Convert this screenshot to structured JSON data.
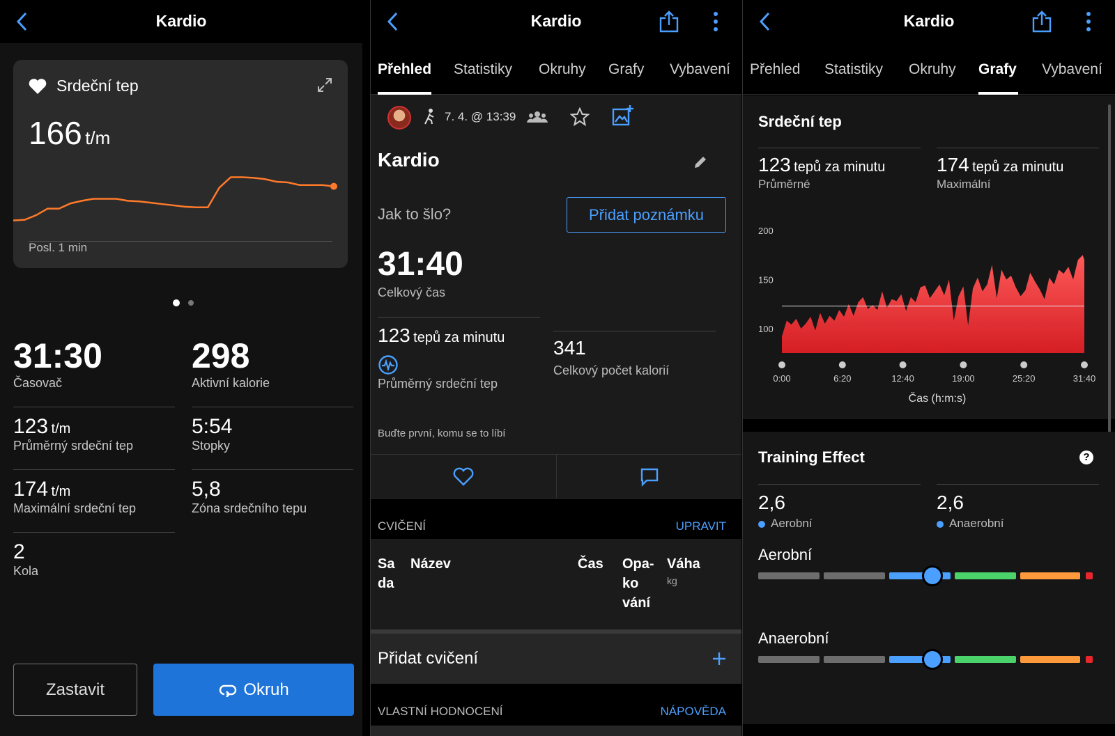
{
  "panel1": {
    "title": "Kardio",
    "hr_card": {
      "title": "Srdeční tep",
      "value": "166",
      "unit": "t/m",
      "footer": "Posl. 1 min"
    },
    "metrics": [
      {
        "value": "31:30",
        "unit": "",
        "label": "Časovač"
      },
      {
        "value": "298",
        "unit": "",
        "label": "Aktivní kalorie"
      },
      {
        "value": "123",
        "unit": "t/m",
        "label": "Průměrný srdeční tep"
      },
      {
        "value": "5:54",
        "unit": "",
        "label": "Stopky"
      },
      {
        "value": "174",
        "unit": "t/m",
        "label": "Maximální srdeční tep"
      },
      {
        "value": "5,8",
        "unit": "",
        "label": "Zóna srdečního tepu"
      },
      {
        "value": "2",
        "unit": "",
        "label": "Kola"
      }
    ],
    "stop_label": "Zastavit",
    "lap_label": "Okruh"
  },
  "panel2": {
    "title": "Kardio",
    "tabs": [
      "Přehled",
      "Statistiky",
      "Okruhy",
      "Grafy",
      "Vybavení"
    ],
    "active_tab": "Přehled",
    "activity_date": "7. 4. @ 13:39",
    "activity_name": "Kardio",
    "how_was_it": "Jak to šlo?",
    "add_note": "Přidat poznámku",
    "total_time": {
      "value": "31:40",
      "label": "Celkový čas"
    },
    "avg_hr": {
      "value": "123",
      "unit": "tepů za minutu",
      "label": "Průměrný srdeční tep"
    },
    "calories": {
      "value": "341",
      "label": "Celkový počet kalorií"
    },
    "like_text": "Buďte první, komu se to líbí",
    "exercise_header": "CVIČENÍ",
    "exercise_edit": "UPRAVIT",
    "table_headers": {
      "set": "Sa\nda",
      "name": "Název",
      "time": "Čas",
      "reps": "Opa-\nko\nvání",
      "weight": "Váha",
      "weight_unit": "kg"
    },
    "add_exercise": "Přidat cvičení",
    "rating_header": "VLASTNÍ HODNOCENÍ",
    "help": "NÁPOVĚDA"
  },
  "panel3": {
    "title": "Kardio",
    "tabs": [
      "Přehled",
      "Statistiky",
      "Okruhy",
      "Grafy",
      "Vybavení"
    ],
    "active_tab": "Grafy",
    "hr_title": "Srdeční tep",
    "avg": {
      "value": "123",
      "unit": "tepů za minutu",
      "label": "Průměrné"
    },
    "max": {
      "value": "174",
      "unit": "tepů za minutu",
      "label": "Maximální"
    },
    "xlabel": "Čas (h:m:s)",
    "training_effect": {
      "title": "Training Effect",
      "aerobic": {
        "value": "2,6",
        "label": "Aerobní",
        "level": 2.6
      },
      "anaerobic": {
        "value": "2,6",
        "label": "Anaerobní",
        "level": 2.6
      },
      "aerobic_title": "Aerobní",
      "anaerobic_title": "Anaerobní"
    },
    "colors": {
      "low": "#6d6d6d",
      "blue": "#4b9fff",
      "green": "#4cd26b",
      "orange": "#ff9a3c",
      "red": "#e8262c"
    }
  },
  "chart_data": [
    {
      "type": "line",
      "title": "Srdeční tep",
      "x_label": "Posl. 1 min",
      "color": "#ff7a2a",
      "values": [
        100,
        101,
        108,
        118,
        118,
        126,
        130,
        133,
        133,
        133,
        130,
        129,
        127,
        125,
        123,
        121,
        120,
        120,
        150,
        166,
        166,
        165,
        163,
        159,
        158,
        154,
        154,
        154,
        152
      ],
      "current": 166
    },
    {
      "type": "area",
      "title": "Srdeční tep",
      "xlabel": "Čas (h:m:s)",
      "x_ticks": [
        "0:00",
        "6:20",
        "12:40",
        "19:00",
        "25:20",
        "31:40"
      ],
      "y_ticks": [
        100,
        150,
        200
      ],
      "ylim": [
        75,
        210
      ],
      "xlim": [
        0,
        31.67
      ],
      "avg_line": 123,
      "color": "#e8262c",
      "x": [
        0,
        0.5,
        1,
        1.5,
        2,
        2.5,
        3,
        3.5,
        4,
        4.5,
        5,
        5.5,
        6,
        6.5,
        7,
        7.5,
        8,
        8.5,
        9,
        9.5,
        10,
        10.5,
        11,
        11.5,
        12,
        12.5,
        13,
        13.5,
        14,
        14.5,
        15,
        15.5,
        16,
        16.5,
        17,
        17.5,
        18,
        18.5,
        19,
        19.5,
        20,
        20.5,
        21,
        21.5,
        22,
        22.5,
        23,
        23.5,
        24,
        24.5,
        25,
        25.5,
        26,
        26.5,
        27,
        27.5,
        28,
        28.5,
        29,
        29.5,
        30,
        30.5,
        31,
        31.5,
        31.67
      ],
      "y": [
        92,
        108,
        104,
        110,
        100,
        105,
        112,
        98,
        116,
        105,
        113,
        108,
        119,
        112,
        125,
        113,
        127,
        132,
        120,
        124,
        119,
        138,
        121,
        130,
        128,
        135,
        118,
        132,
        127,
        142,
        144,
        131,
        138,
        145,
        134,
        150,
        108,
        133,
        143,
        103,
        141,
        152,
        138,
        145,
        165,
        131,
        160,
        150,
        154,
        142,
        133,
        139,
        157,
        148,
        140,
        130,
        152,
        145,
        160,
        156,
        163,
        150,
        170,
        175,
        170
      ]
    }
  ]
}
